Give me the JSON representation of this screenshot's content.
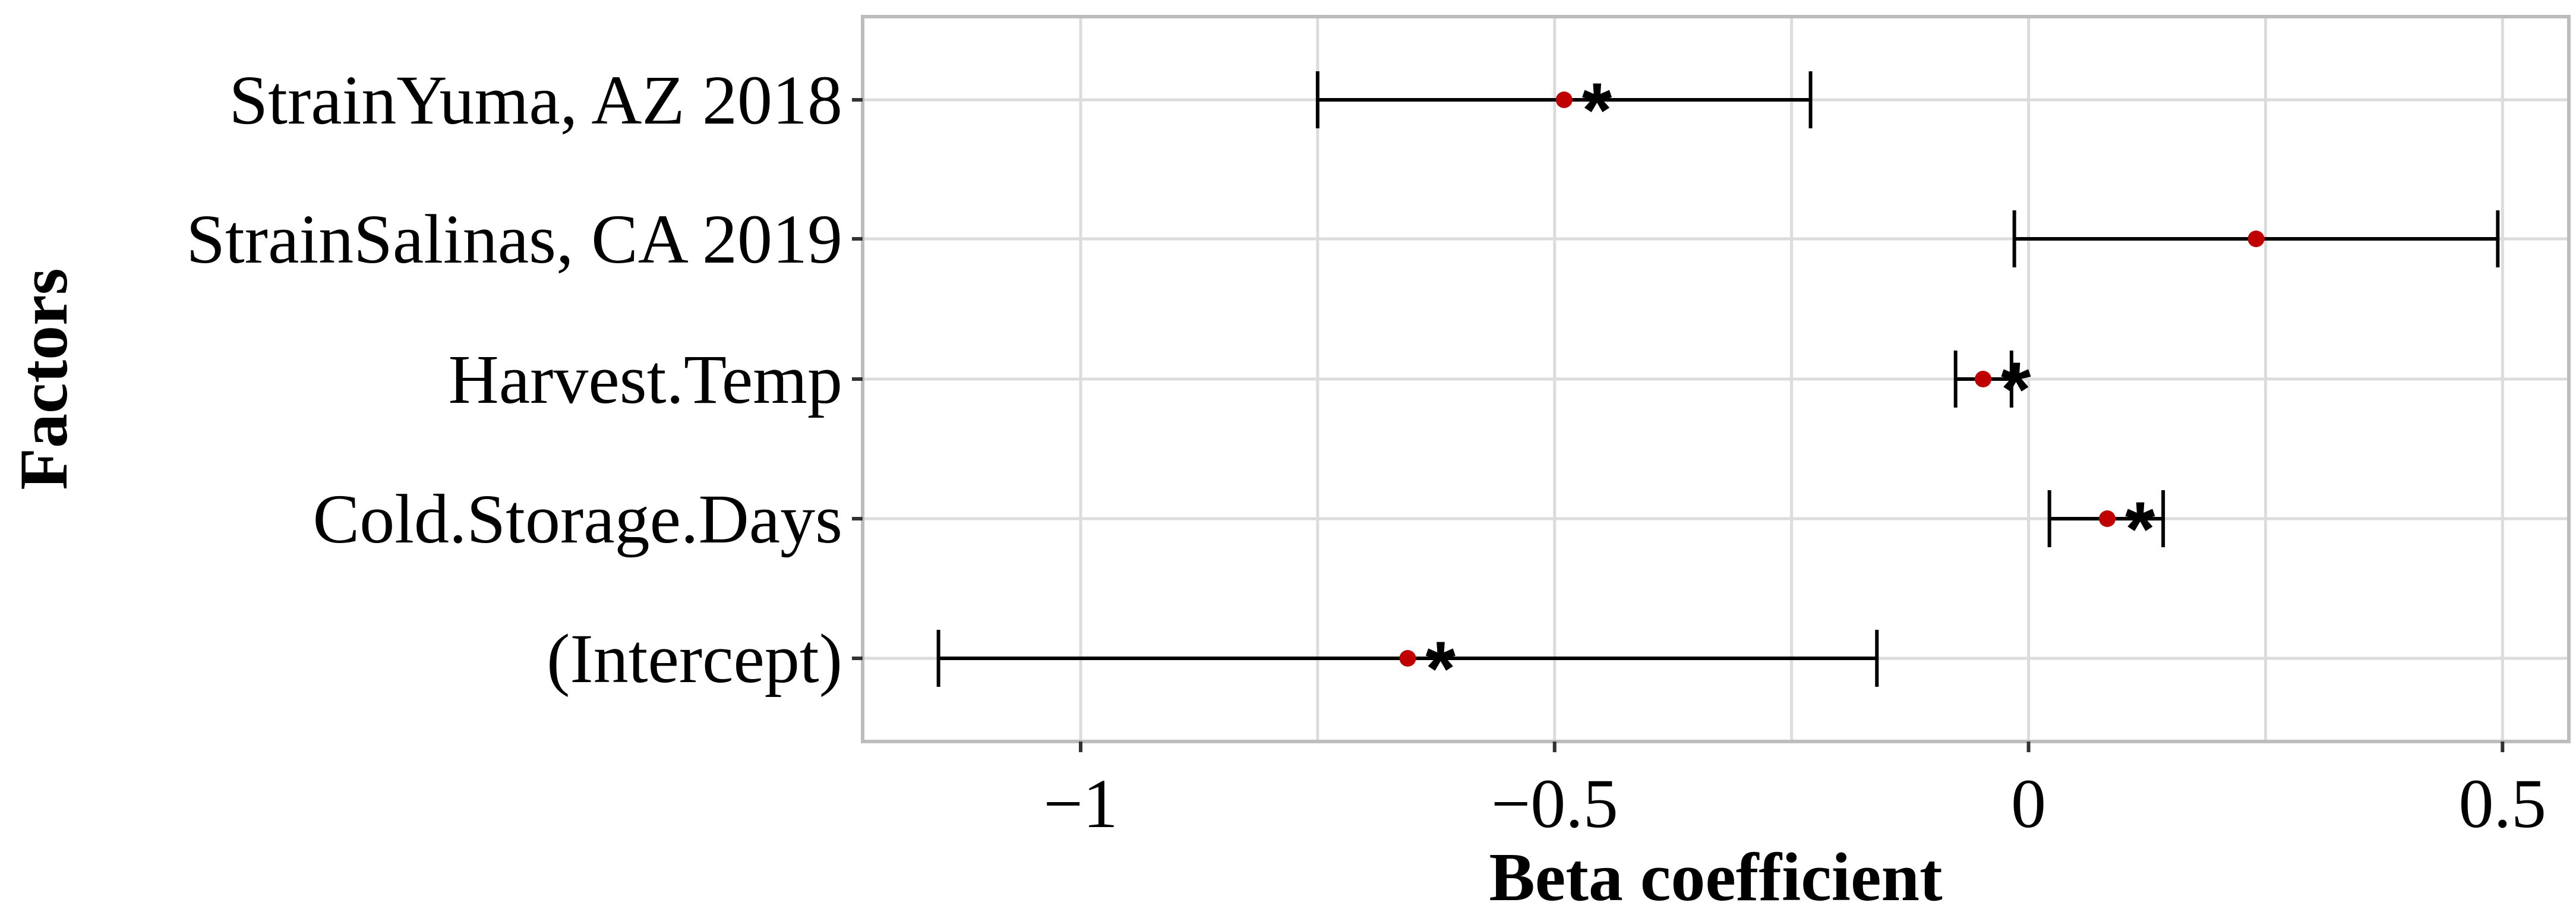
{
  "chart_data": {
    "type": "forest",
    "xlabel": "Beta coefficient",
    "ylabel": "Factors",
    "xlim": [
      -1.23,
      0.57
    ],
    "x_ticks": [
      -1,
      -0.5,
      0,
      0.5
    ],
    "x_tick_labels": [
      "−1",
      "−0.5",
      "0",
      "0.5"
    ],
    "grid": true,
    "point_color": "#c00000",
    "significance_marker": "*",
    "factors": [
      {
        "label": "StrainYuma, AZ 2018",
        "estimate": -0.49,
        "lower": -0.75,
        "upper": -0.23,
        "significant": true
      },
      {
        "label": "StrainSalinas, CA 2019",
        "estimate": 0.24,
        "lower": -0.015,
        "upper": 0.495,
        "significant": false
      },
      {
        "label": "Harvest.Temp",
        "estimate": -0.048,
        "lower": -0.077,
        "upper": -0.018,
        "significant": true
      },
      {
        "label": "Cold.Storage.Days",
        "estimate": 0.083,
        "lower": 0.022,
        "upper": 0.142,
        "significant": true
      },
      {
        "label": "(Intercept)",
        "estimate": -0.655,
        "lower": -1.15,
        "upper": -0.16,
        "significant": true
      }
    ]
  }
}
